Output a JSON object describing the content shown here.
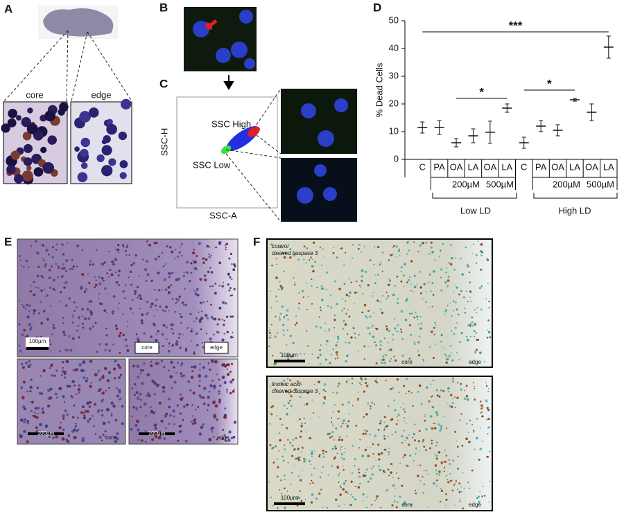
{
  "panel_labels": [
    "A",
    "B",
    "C",
    "D",
    "E",
    "F"
  ],
  "panel_a": {
    "core": "core",
    "edge": "edge"
  },
  "panel_c": {
    "ssc_high": "SSC High",
    "ssc_low": "SSC Low",
    "y_label": "SSC-H",
    "x_label": "SSC-A"
  },
  "panel_e": {
    "main": {
      "scale": "100µm",
      "core": "core",
      "edge": "edge"
    },
    "insets": [
      {
        "scale": "100µm",
        "region": "core"
      },
      {
        "scale": "100µm",
        "region": "edge"
      }
    ]
  },
  "panel_f": {
    "images": [
      {
        "condition": "control",
        "stain": "cleaved caspase 3",
        "scale": "100µm",
        "core": "core",
        "edge": "edge"
      },
      {
        "condition": "linoleic acid",
        "stain": "cleaved caspase 3",
        "scale": "100µm",
        "core": "core",
        "edge": "edge"
      }
    ]
  },
  "chart_data": {
    "type": "errorbar",
    "y_label": "% Dead Cells",
    "categories": [
      "C",
      "PA",
      "OA",
      "LA",
      "OA",
      "LA",
      "C",
      "PA",
      "OA",
      "LA",
      "OA",
      "LA"
    ],
    "values": [
      11.5,
      11.5,
      6,
      8.5,
      9.8,
      18.5,
      6,
      12,
      10.5,
      21.5,
      17,
      40.5
    ],
    "errors": [
      2,
      2.5,
      1.5,
      2.5,
      4,
      1.5,
      2,
      2,
      2,
      0.5,
      3,
      4
    ],
    "concentrations": [
      "200µM",
      "500µM",
      "200µM",
      "500µM"
    ],
    "ld_groups": [
      "Low LD",
      "High LD"
    ],
    "significance": [
      "***",
      "*",
      "*"
    ],
    "color": "#111111",
    "ylim": [
      0,
      50
    ],
    "yticks": [
      0,
      10,
      20,
      30,
      40,
      50
    ]
  }
}
